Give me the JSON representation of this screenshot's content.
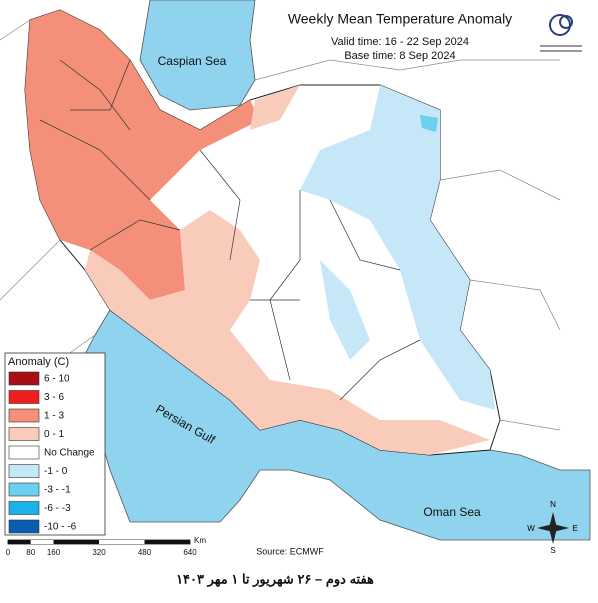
{
  "header": {
    "title": "Weekly Mean Temperature Anomaly",
    "valid_time": "Valid time: 16 - 22 Sep 2024",
    "base_time": "Base time: 8 Sep 2024"
  },
  "labels": {
    "caspian": "Caspian Sea",
    "gulf": "Persian Gulf",
    "oman": "Oman Sea"
  },
  "legend": {
    "title": "Anomaly (C)",
    "items": [
      {
        "label": "6 - 10",
        "color": "#a50f15"
      },
      {
        "label": "3 - 6",
        "color": "#f21d1d"
      },
      {
        "label": "1 - 3",
        "color": "#f4907a"
      },
      {
        "label": "0 - 1",
        "color": "#f9cbbb"
      },
      {
        "label": "No Change",
        "color": "#ffffff"
      },
      {
        "label": "-1 - 0",
        "color": "#c6e7f8"
      },
      {
        "label": "-3 - -1",
        "color": "#6ccff0"
      },
      {
        "label": "-6 - -3",
        "color": "#1ab2e8"
      },
      {
        "label": "-10 - -6",
        "color": "#0b5db0"
      }
    ]
  },
  "scale_bar": {
    "ticks": [
      0,
      80,
      160,
      320,
      480,
      640
    ],
    "unit": "Km"
  },
  "source": "Source: ECMWF",
  "compass": {
    "n": "N",
    "s": "S",
    "e": "E",
    "w": "W"
  },
  "footer": "هفته دوم – ۲۶ شهریور تا ۱ مهر ۱۴۰۳"
}
